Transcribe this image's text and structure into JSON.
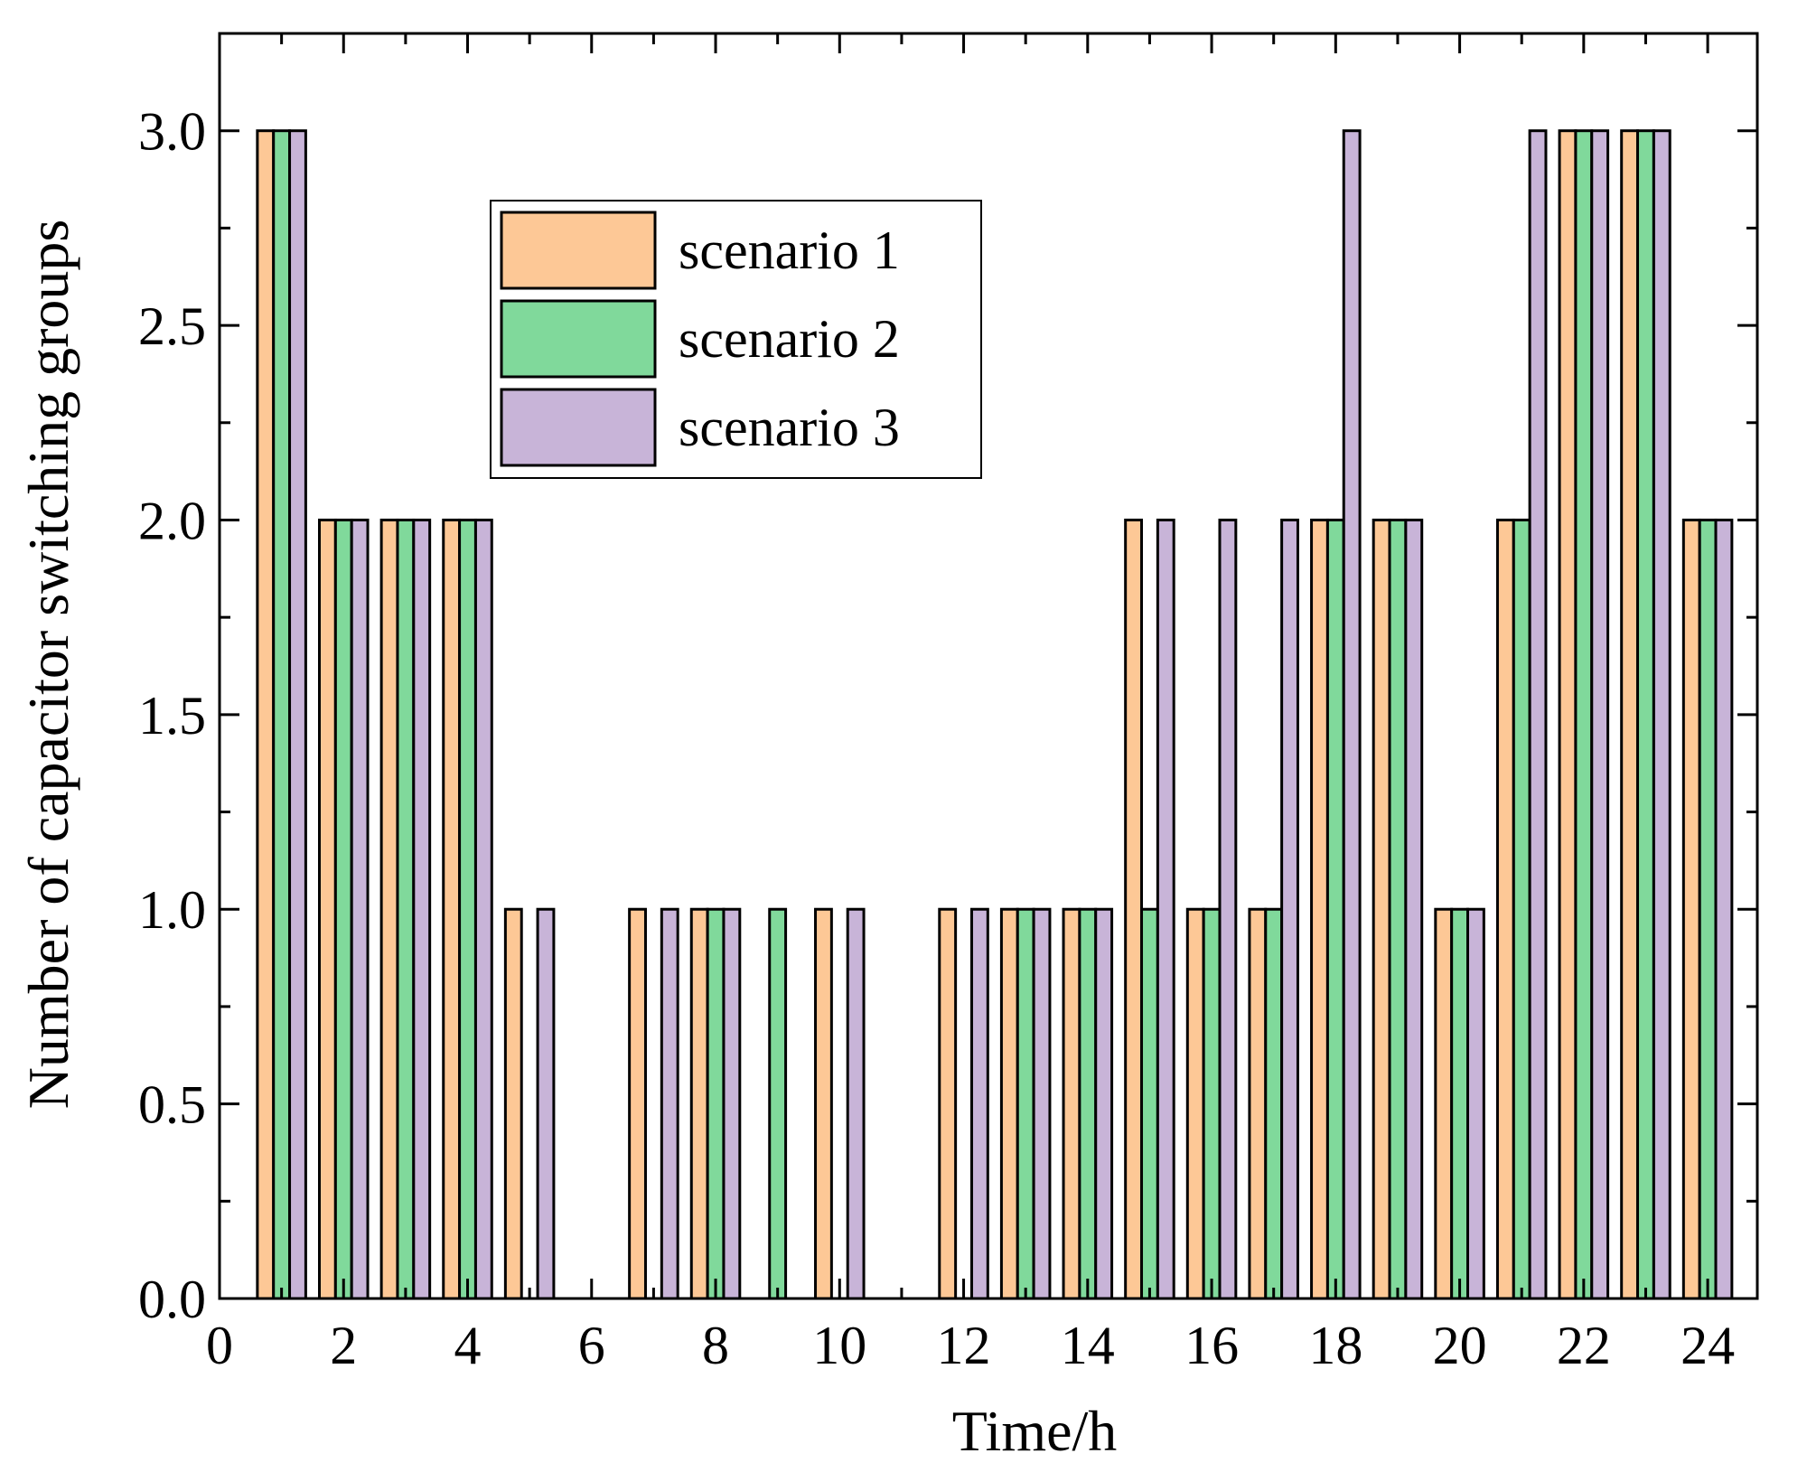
{
  "chart_data": {
    "type": "bar",
    "xlabel": "Time/h",
    "ylabel": "Number of capacitor switching groups",
    "xlim": [
      0,
      24.8
    ],
    "ylim": [
      0,
      3.25
    ],
    "xticks": [
      "0",
      "2",
      "4",
      "6",
      "8",
      "10",
      "12",
      "14",
      "16",
      "18",
      "20",
      "22",
      "24"
    ],
    "yticks": [
      "0.0",
      "0.5",
      "1.0",
      "1.5",
      "2.0",
      "2.5",
      "3.0"
    ],
    "legend_position": "upper-left-inside",
    "categories": [
      1,
      2,
      3,
      4,
      5,
      6,
      7,
      8,
      9,
      10,
      11,
      12,
      13,
      14,
      15,
      16,
      17,
      18,
      19,
      20,
      21,
      22,
      23,
      24
    ],
    "series": [
      {
        "name": "scenario 1",
        "color": "#fdc896",
        "values": [
          3,
          2,
          2,
          2,
          1,
          0,
          1,
          1,
          0,
          1,
          0,
          1,
          1,
          1,
          2,
          1,
          1,
          2,
          2,
          1,
          2,
          3,
          3,
          2
        ]
      },
      {
        "name": "scenario 2",
        "color": "#80d99b",
        "values": [
          3,
          2,
          2,
          2,
          0,
          0,
          0,
          1,
          1,
          0,
          0,
          0,
          1,
          1,
          1,
          1,
          1,
          2,
          2,
          1,
          2,
          3,
          3,
          2
        ]
      },
      {
        "name": "scenario 3",
        "color": "#c8b4d8",
        "values": [
          3,
          2,
          2,
          2,
          1,
          0,
          1,
          1,
          0,
          1,
          0,
          1,
          1,
          1,
          2,
          2,
          2,
          3,
          2,
          1,
          3,
          3,
          3,
          2
        ]
      }
    ]
  }
}
